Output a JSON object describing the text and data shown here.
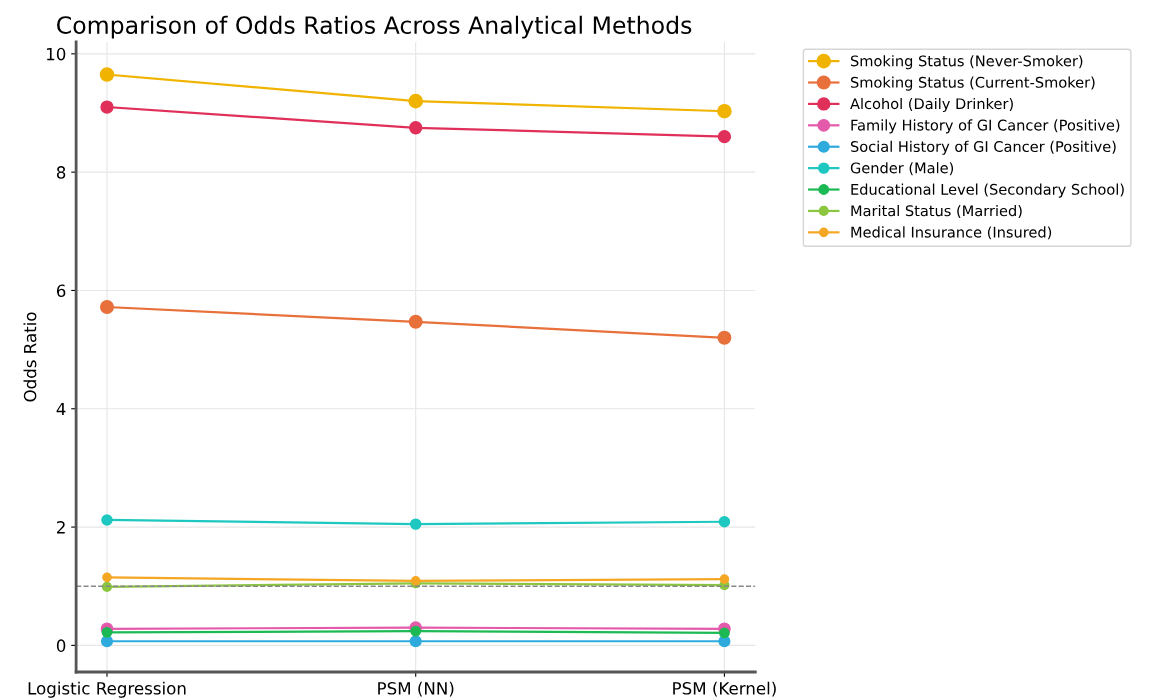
{
  "chart_data": {
    "type": "line",
    "title": "Comparison of Odds Ratios Across Analytical Methods",
    "ylabel": "Odds Ratio",
    "categories": [
      "Logistic Regression",
      "PSM (NN)",
      "PSM (Kernel)"
    ],
    "series": [
      {
        "name": "Smoking Status (Never-Smoker)",
        "color": "#f0b400",
        "values": [
          9.65,
          9.2,
          9.03
        ]
      },
      {
        "name": "Smoking Status (Current-Smoker)",
        "color": "#e8703a",
        "values": [
          5.72,
          5.47,
          5.2
        ]
      },
      {
        "name": "Alcohol (Daily Drinker)",
        "color": "#e0305a",
        "values": [
          9.1,
          8.75,
          8.6
        ]
      },
      {
        "name": "Family History of GI Cancer (Positive)",
        "color": "#e45aaa",
        "values": [
          0.28,
          0.3,
          0.28
        ]
      },
      {
        "name": "Social History of GI Cancer (Positive)",
        "color": "#2eaadc",
        "values": [
          0.07,
          0.07,
          0.07
        ]
      },
      {
        "name": "Gender (Male)",
        "color": "#1ec8c0",
        "values": [
          2.12,
          2.05,
          2.09
        ]
      },
      {
        "name": "Educational Level (Secondary School)",
        "color": "#1db954",
        "values": [
          0.22,
          0.24,
          0.21
        ]
      },
      {
        "name": "Marital Status (Married)",
        "color": "#8cc63f",
        "values": [
          0.99,
          1.05,
          1.02
        ]
      },
      {
        "name": "Medical Insurance (Insured)",
        "color": "#f5a623",
        "values": [
          1.15,
          1.09,
          1.12
        ]
      }
    ],
    "ylim": [
      -0.45,
      10.2
    ],
    "yticks": [
      0,
      2,
      4,
      6,
      8,
      10
    ],
    "ref_lines": [
      {
        "axis": "y",
        "value": 1,
        "label": null,
        "color": "#888888",
        "line_style": "dashed"
      }
    ],
    "grid": true,
    "legend": "top right",
    "marker": "circle",
    "line_style": "solid"
  }
}
